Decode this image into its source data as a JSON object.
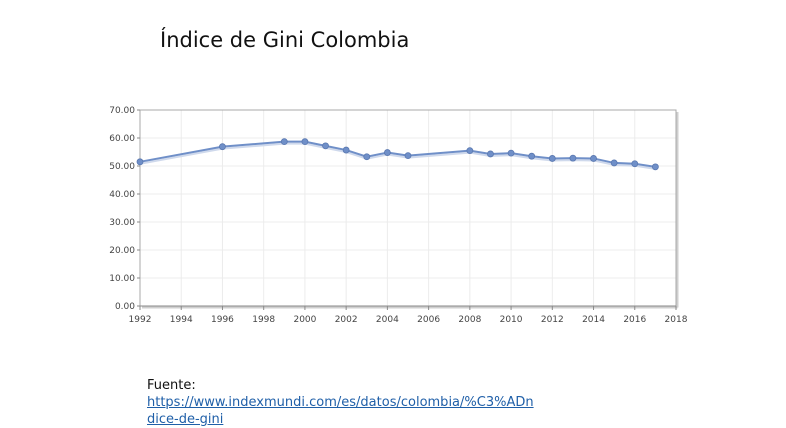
{
  "title": "Índice de Gini Colombia",
  "source": {
    "label": "Fuente:",
    "url": "https://www.indexmundi.com/es/datos/colombia/%C3%ADndice-de-gini"
  },
  "chart_data": {
    "type": "line",
    "title": "Índice de Gini Colombia",
    "xlabel": "",
    "ylabel": "",
    "xlim": [
      1992,
      2018
    ],
    "ylim": [
      0,
      70
    ],
    "x_ticks": [
      "1992",
      "1994",
      "1996",
      "1998",
      "2000",
      "2002",
      "2004",
      "2006",
      "2008",
      "2010",
      "2012",
      "2014",
      "2016",
      "2018"
    ],
    "y_ticks": [
      "0.00",
      "10.00",
      "20.00",
      "30.00",
      "40.00",
      "50.00",
      "60.00",
      "70.00"
    ],
    "grid": true,
    "legend": "none",
    "line_color": "#6f8fc8",
    "series": [
      {
        "x": [
          1992,
          1996,
          1999,
          2000,
          2001,
          2002,
          2003,
          2004,
          2005,
          2008,
          2009,
          2010,
          2011,
          2012,
          2013,
          2014,
          2015,
          2016,
          2017
        ],
        "values": [
          51.5,
          56.9,
          58.7,
          58.7,
          57.2,
          55.7,
          53.3,
          54.8,
          53.7,
          55.5,
          54.3,
          54.6,
          53.5,
          52.7,
          52.8,
          52.7,
          51.1,
          50.8,
          49.7
        ]
      }
    ]
  }
}
